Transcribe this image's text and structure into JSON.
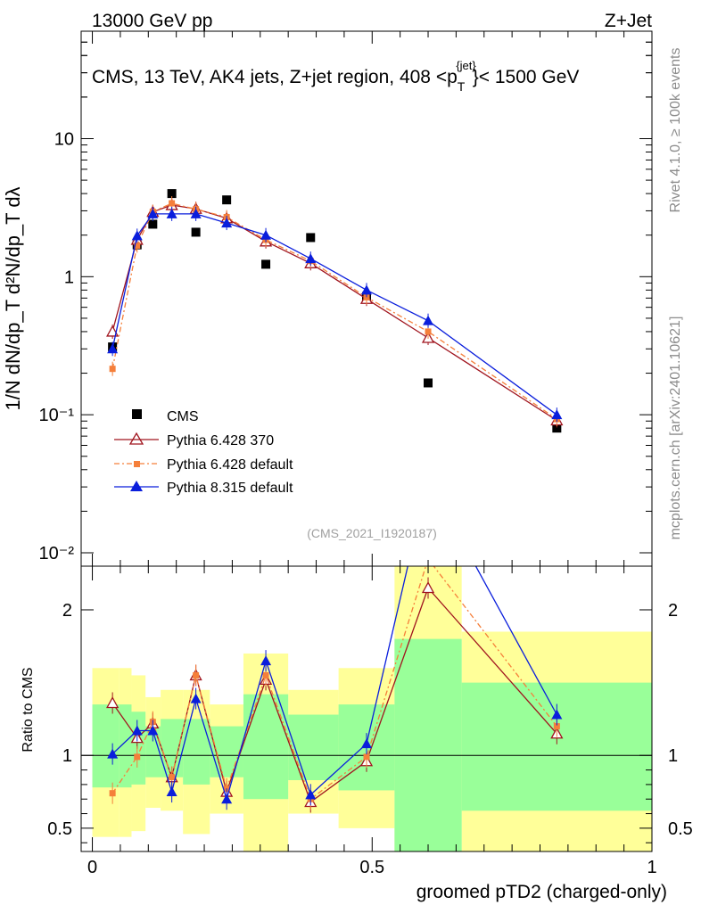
{
  "header": {
    "left": "13000 GeV pp",
    "right": "Z+Jet"
  },
  "side_labels": {
    "rivet": "Rivet 4.1.0, ≥ 100k events",
    "mcplots": "mcplots.cern.ch [arXiv:2401.10621]"
  },
  "colors": {
    "cms": "#000000",
    "py6_370": "#a0141e",
    "py6_default": "#f57f3a",
    "py8_default": "#0a1edc",
    "band_yellow": "#ffff99",
    "band_green": "#99ff99"
  },
  "chart_data": [
    {
      "type": "scatter",
      "panel": "main",
      "title": "CMS, 13 TeV, AK4 jets, Z+jet region, 408 <p_T^{jet}< 1500 GeV",
      "title_main": "CMS, 13 TeV, AK4 jets, Z+jet region, 408 <p",
      "title_sub": "T",
      "title_sup": "{jet}",
      "title_end": "}< 1500 GeV",
      "ylabel": "1/N dN/dp_T d²N/dp_T dλ",
      "yscale": "log",
      "ylim": [
        0.008,
        60
      ],
      "xlim": [
        -0.02,
        1.0
      ],
      "yticks": [
        0.01,
        0.1,
        1,
        10
      ],
      "ytick_labels": [
        "10⁻²",
        "10⁻¹",
        "1",
        "10"
      ],
      "watermark": "(CMS_2021_I1920187)",
      "legend": [
        "CMS",
        "Pythia 6.428 370",
        "Pythia 6.428 default",
        "Pythia 8.315 default"
      ],
      "series": [
        {
          "name": "CMS",
          "x": [
            0.036,
            0.08,
            0.108,
            0.142,
            0.185,
            0.24,
            0.31,
            0.39,
            0.49,
            0.6,
            0.83
          ],
          "y": [
            0.31,
            1.7,
            2.4,
            4.0,
            2.1,
            3.6,
            1.23,
            1.92,
            0.72,
            0.17,
            0.08
          ]
        },
        {
          "name": "Pythia 6.428 370",
          "x": [
            0.036,
            0.08,
            0.108,
            0.142,
            0.185,
            0.24,
            0.31,
            0.39,
            0.49,
            0.6,
            0.83
          ],
          "y": [
            0.4,
            1.85,
            2.95,
            3.3,
            3.1,
            2.65,
            1.8,
            1.25,
            0.69,
            0.36,
            0.091
          ]
        },
        {
          "name": "Pythia 6.428 default",
          "x": [
            0.036,
            0.08,
            0.108,
            0.142,
            0.185,
            0.24,
            0.31,
            0.39,
            0.49,
            0.6,
            0.83
          ],
          "y": [
            0.215,
            1.68,
            2.95,
            3.4,
            3.08,
            2.7,
            1.85,
            1.3,
            0.71,
            0.4,
            0.093
          ]
        },
        {
          "name": "Pythia 8.315 default",
          "x": [
            0.036,
            0.08,
            0.108,
            0.142,
            0.185,
            0.24,
            0.31,
            0.39,
            0.49,
            0.6,
            0.83
          ],
          "y": [
            0.3,
            1.98,
            2.85,
            2.85,
            2.85,
            2.45,
            2.0,
            1.35,
            0.8,
            0.48,
            0.1
          ]
        }
      ]
    },
    {
      "type": "line",
      "panel": "ratio",
      "ylabel": "Ratio to CMS",
      "xlabel": "groomed pTD2 (charged-only)",
      "ylim": [
        0.34,
        2.3
      ],
      "xlim": [
        -0.02,
        1.0
      ],
      "yticks": [
        0.5,
        1,
        2
      ],
      "ytick_labels": [
        "0.5",
        "1",
        "2"
      ],
      "xticks": [
        0,
        0.5,
        1
      ],
      "xtick_labels": [
        "0",
        "0.5",
        "1"
      ],
      "bins": [
        [
          0.0,
          0.048
        ],
        [
          0.048,
          0.07
        ],
        [
          0.07,
          0.095
        ],
        [
          0.095,
          0.122
        ],
        [
          0.122,
          0.162
        ],
        [
          0.162,
          0.21
        ],
        [
          0.21,
          0.27
        ],
        [
          0.27,
          0.35
        ],
        [
          0.35,
          0.44
        ],
        [
          0.44,
          0.54
        ],
        [
          0.54,
          0.66
        ],
        [
          0.66,
          1.0
        ]
      ],
      "band_green": [
        [
          0.78,
          1.35
        ],
        [
          0.78,
          1.35
        ],
        [
          0.8,
          1.3
        ],
        [
          0.85,
          1.2
        ],
        [
          0.85,
          1.25
        ],
        [
          0.8,
          1.25
        ],
        [
          0.85,
          1.2
        ],
        [
          0.7,
          1.42
        ],
        [
          0.83,
          1.28
        ],
        [
          0.76,
          1.35
        ],
        [
          0.34,
          1.8
        ],
        [
          0.62,
          1.5
        ]
      ],
      "band_yellow": [
        [
          0.44,
          1.6
        ],
        [
          0.44,
          1.6
        ],
        [
          0.48,
          1.55
        ],
        [
          0.64,
          1.4
        ],
        [
          0.62,
          1.45
        ],
        [
          0.46,
          1.45
        ],
        [
          0.6,
          1.35
        ],
        [
          0.34,
          1.7
        ],
        [
          0.6,
          1.45
        ],
        [
          0.5,
          1.6
        ],
        [
          0.34,
          2.3
        ],
        [
          0.34,
          1.85
        ]
      ],
      "series": [
        {
          "name": "Pythia 6.428 370",
          "x": [
            0.036,
            0.08,
            0.108,
            0.142,
            0.185,
            0.24,
            0.31,
            0.39,
            0.49,
            0.6,
            0.83
          ],
          "y": [
            1.36,
            1.12,
            1.22,
            0.85,
            1.55,
            0.75,
            1.52,
            0.68,
            0.96,
            2.15,
            1.15
          ]
        },
        {
          "name": "Pythia 6.428 default",
          "x": [
            0.036,
            0.08,
            0.108,
            0.142,
            0.185,
            0.24,
            0.31,
            0.39,
            0.49,
            0.6,
            0.83
          ],
          "y": [
            0.74,
            0.99,
            1.23,
            0.85,
            1.55,
            0.77,
            1.55,
            0.7,
            0.99,
            2.35,
            1.2
          ]
        },
        {
          "name": "Pythia 8.315 default",
          "x": [
            0.036,
            0.08,
            0.108,
            0.142,
            0.185,
            0.24,
            0.31,
            0.39,
            0.49,
            0.6,
            0.83
          ],
          "y": [
            1.01,
            1.17,
            1.17,
            0.75,
            1.39,
            0.7,
            1.65,
            0.73,
            1.08,
            2.9,
            1.28
          ]
        }
      ]
    }
  ]
}
